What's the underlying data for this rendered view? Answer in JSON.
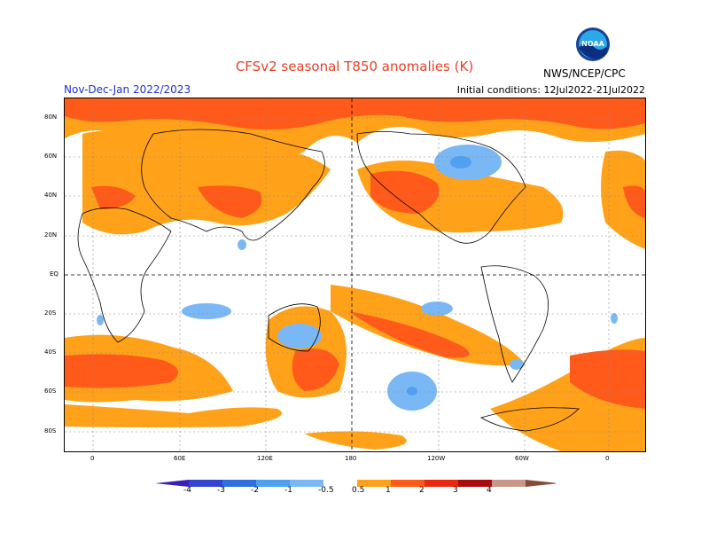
{
  "header": {
    "title": "CFSv2 seasonal T850 anomalies (K)",
    "season": "Nov-Dec-Jan 2022/2023",
    "initial_conditions": "Initial conditions: 12Jul2022-21Jul2022",
    "agency": "NWS/NCEP/CPC",
    "logo_text": "NOAA"
  },
  "map": {
    "lat_labels": [
      "80N",
      "60N",
      "40N",
      "20N",
      "EQ",
      "20S",
      "40S",
      "60S",
      "80S"
    ],
    "lon_labels": [
      "0",
      "60E",
      "120E",
      "180",
      "120W",
      "60W",
      "0"
    ]
  },
  "colorbar": {
    "labels": [
      "-4",
      "-3",
      "-2",
      "-1",
      "-0.5",
      "0.5",
      "1",
      "2",
      "3",
      "4"
    ],
    "colors": [
      "#3a1fb5",
      "#3344d0",
      "#2f6fe0",
      "#4fa0f0",
      "#7ab8f5",
      "#ffffff",
      "#ffa21a",
      "#ff5a1a",
      "#e82810",
      "#a80c0c",
      "#c8968a",
      "#8a4a3a"
    ]
  }
}
